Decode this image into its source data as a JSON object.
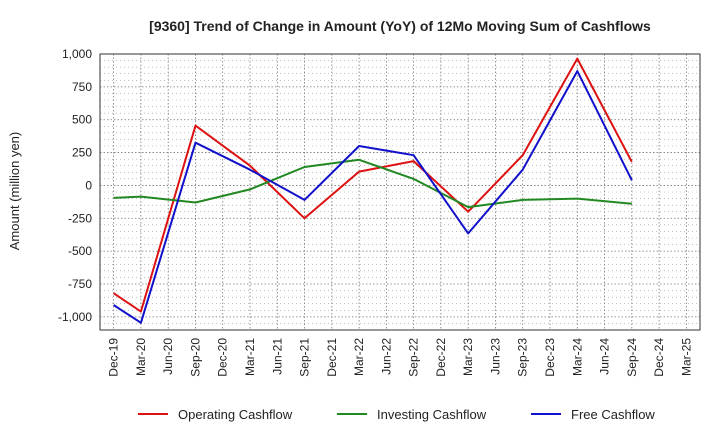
{
  "chart_data": {
    "type": "line",
    "title": "[9360]  Trend of Change in Amount (YoY) of 12Mo Moving Sum of Cashflows",
    "xlabel": "",
    "ylabel": "Amount (million yen)",
    "ylim": [
      -1100,
      1000
    ],
    "yticks": [
      1000,
      750,
      500,
      250,
      0,
      -250,
      -500,
      -750,
      -1000
    ],
    "ytick_labels": [
      "1,000",
      "750",
      "500",
      "250",
      "0",
      "-250",
      "-500",
      "-750",
      "-1,000"
    ],
    "categories": [
      "Dec-19",
      "Mar-20",
      "Jun-20",
      "Sep-20",
      "Dec-20",
      "Mar-21",
      "Jun-21",
      "Sep-21",
      "Dec-21",
      "Mar-22",
      "Jun-22",
      "Sep-22",
      "Dec-22",
      "Mar-23",
      "Jun-23",
      "Sep-23",
      "Dec-23",
      "Mar-24",
      "Jun-24",
      "Sep-24",
      "Dec-24",
      "Mar-25"
    ],
    "grid": true,
    "legend_position": "bottom",
    "series": [
      {
        "name": "Operating Cashflow",
        "color": "#dd1111",
        "values": [
          -820,
          -960,
          null,
          455,
          null,
          150,
          null,
          -250,
          null,
          105,
          null,
          185,
          null,
          -200,
          null,
          230,
          null,
          965,
          null,
          180,
          null,
          null
        ]
      },
      {
        "name": "Investing Cashflow",
        "color": "#228822",
        "values": [
          -95,
          -85,
          null,
          -130,
          null,
          -30,
          null,
          140,
          null,
          195,
          null,
          50,
          null,
          -165,
          null,
          -110,
          null,
          -100,
          null,
          -140,
          null,
          null
        ]
      },
      {
        "name": "Free Cashflow",
        "color": "#1111cc",
        "values": [
          -910,
          -1045,
          null,
          325,
          null,
          120,
          null,
          -110,
          null,
          300,
          null,
          230,
          null,
          -365,
          null,
          120,
          null,
          870,
          null,
          40,
          null,
          null
        ]
      }
    ]
  }
}
